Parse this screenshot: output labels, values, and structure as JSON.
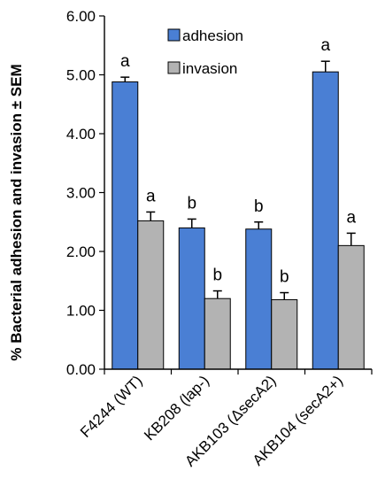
{
  "chart_data": {
    "type": "bar",
    "title": "",
    "xlabel": "",
    "ylabel": "% Bacterial adhesion and invasion ± SEM",
    "ylim": [
      0,
      6
    ],
    "yticks": [
      "0.00",
      "1.00",
      "2.00",
      "3.00",
      "4.00",
      "5.00",
      "6.00"
    ],
    "categories": [
      "F4244 (WT)",
      "KB208 (lap-)",
      "AKB103 (ΔsecA2)",
      "AKB104 (secA2+)"
    ],
    "legend_position": "top-right",
    "series": [
      {
        "name": "adhesion",
        "color": "#4a7fd4",
        "values": [
          4.88,
          2.4,
          2.38,
          5.05
        ],
        "errors": [
          0.08,
          0.15,
          0.12,
          0.18
        ],
        "significance": [
          "a",
          "b",
          "b",
          "a"
        ]
      },
      {
        "name": "invasion",
        "color": "#b3b3b3",
        "values": [
          2.52,
          1.2,
          1.18,
          2.1
        ],
        "errors": [
          0.15,
          0.13,
          0.12,
          0.21
        ],
        "significance": [
          "a",
          "b",
          "b",
          "a"
        ]
      }
    ]
  }
}
